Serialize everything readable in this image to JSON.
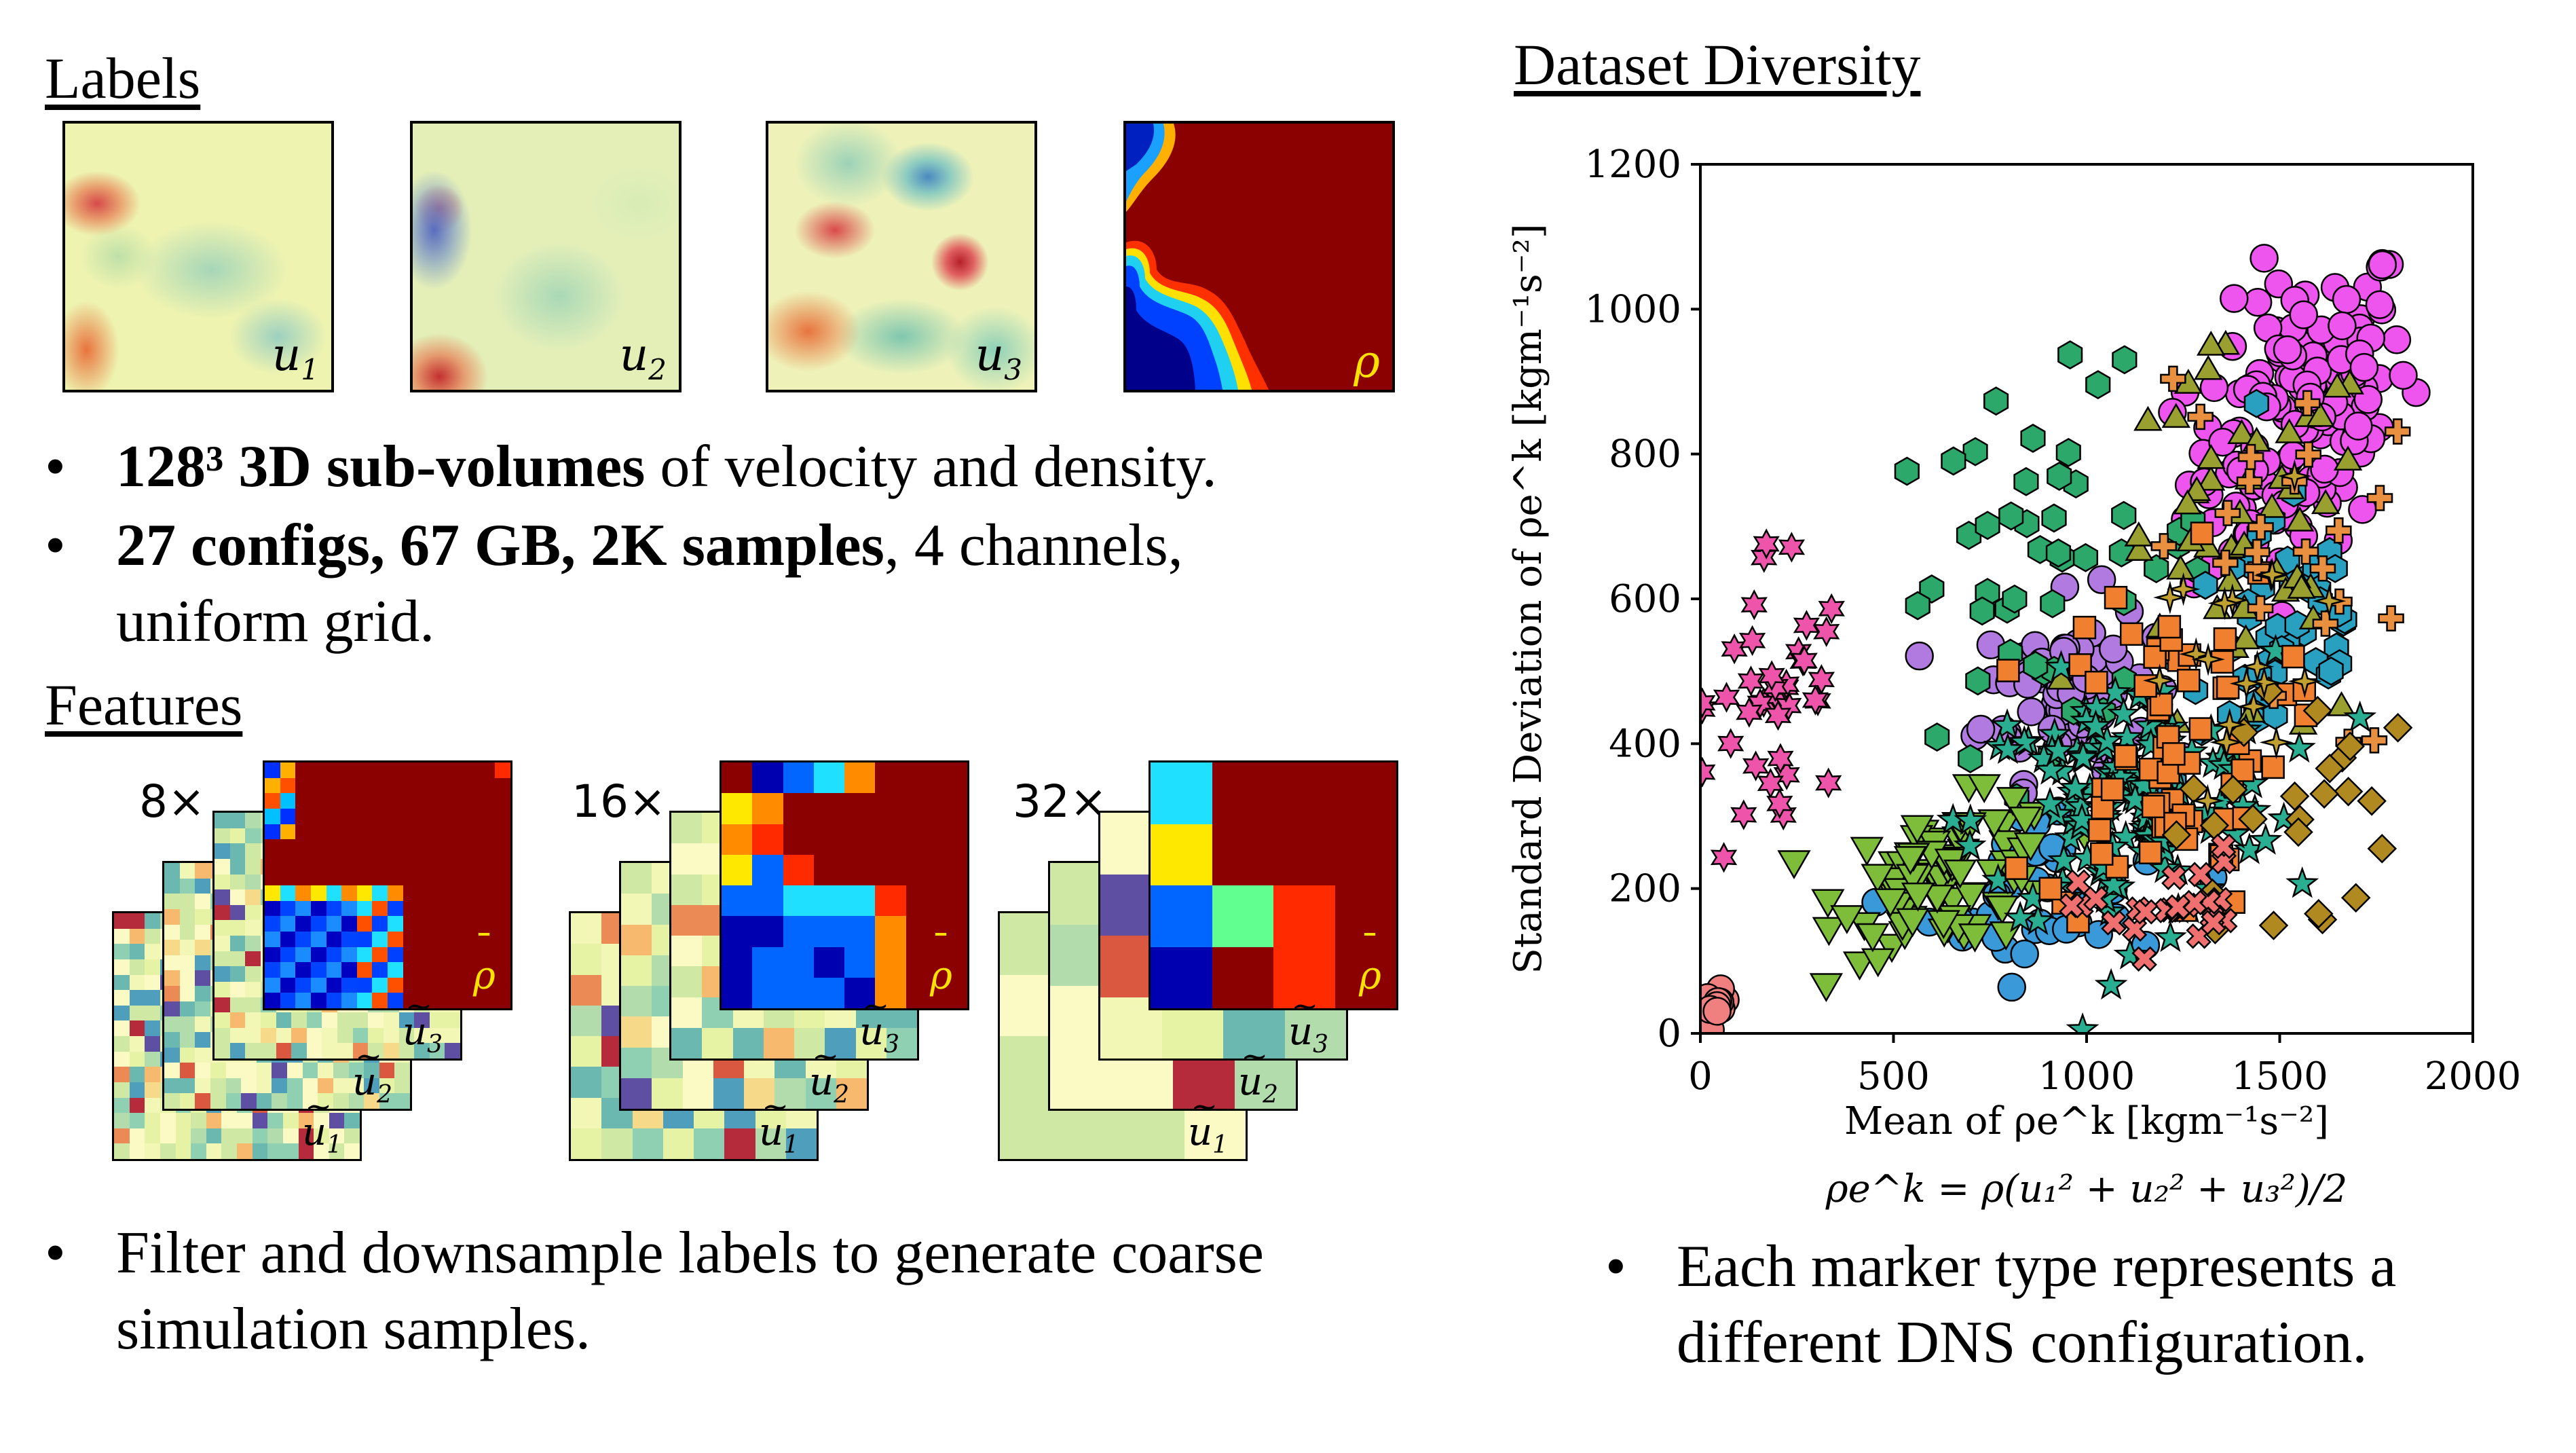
{
  "labels_heading": "Labels",
  "features_heading": "Features",
  "diversity_heading": "Dataset Diversity",
  "panels": [
    {
      "var": "u",
      "sub": "1"
    },
    {
      "var": "u",
      "sub": "2"
    },
    {
      "var": "u",
      "sub": "3"
    },
    {
      "var": "ρ",
      "sub": ""
    }
  ],
  "bullets": {
    "b1_bold": "128³ 3D sub-volumes",
    "b1_rest": " of velocity and density.",
    "b2_bold": "27 configs, 67 GB, 2K samples",
    "b2_rest": ", 4 channels,",
    "b2_line2": "uniform grid.",
    "b3_line1": "Filter and downsample labels to generate coarse",
    "b3_line2": "simulation samples.",
    "b4_line1": "Each marker type represents a",
    "b4_line2": "different DNS configuration."
  },
  "features": {
    "factors": [
      "8×",
      "16×",
      "32×"
    ],
    "stack_labels": {
      "l1": "u",
      "l2": "u",
      "l3": "u",
      "rho": "ρ"
    }
  },
  "chart_data": {
    "type": "scatter",
    "xlabel": "Mean of ρe^k [kgm⁻¹s⁻²]",
    "ylabel": "Standard Deviation of ρe^k [kgm⁻¹s⁻²]",
    "formula": "ρe^k = ρ(u₁² + u₂² + u₃²)/2",
    "xlim": [
      0,
      2000
    ],
    "ylim": [
      0,
      1200
    ],
    "xticks": [
      0,
      500,
      1000,
      1500,
      2000
    ],
    "yticks": [
      0,
      200,
      400,
      600,
      800,
      1000,
      1200
    ],
    "legend": "none",
    "series": [
      {
        "marker": "circle",
        "color": "#ee55ee",
        "center": [
          1550,
          850
        ],
        "spread": [
          260,
          180
        ],
        "n": 150
      },
      {
        "marker": "circle",
        "color": "#b07ae0",
        "center": [
          950,
          480
        ],
        "spread": [
          200,
          110
        ],
        "n": 70
      },
      {
        "marker": "circle",
        "color": "#3a9ad9",
        "center": [
          900,
          200
        ],
        "spread": [
          280,
          110
        ],
        "n": 40
      },
      {
        "marker": "circle",
        "color": "#f08080",
        "center": [
          40,
          35
        ],
        "spread": [
          25,
          20
        ],
        "n": 10
      },
      {
        "marker": "hexagon",
        "color": "#2ca86a",
        "center": [
          900,
          650
        ],
        "spread": [
          380,
          220
        ],
        "n": 50
      },
      {
        "marker": "hexagon",
        "color": "#2aa0c0",
        "center": [
          1500,
          550
        ],
        "spread": [
          250,
          180
        ],
        "n": 50
      },
      {
        "marker": "triangle",
        "color": "#9aa030",
        "center": [
          1400,
          650
        ],
        "spread": [
          320,
          260
        ],
        "n": 50
      },
      {
        "marker": "triangle-down",
        "color": "#7dbd3a",
        "center": [
          650,
          220
        ],
        "spread": [
          260,
          90
        ],
        "n": 90
      },
      {
        "marker": "star",
        "color": "#2aae92",
        "center": [
          1100,
          320
        ],
        "spread": [
          350,
          160
        ],
        "n": 150
      },
      {
        "marker": "star6",
        "color": "#ee55aa",
        "center": [
          180,
          450
        ],
        "spread": [
          180,
          220
        ],
        "n": 40
      },
      {
        "marker": "square",
        "color": "#f08030",
        "center": [
          1200,
          400
        ],
        "spread": [
          280,
          220
        ],
        "n": 70
      },
      {
        "marker": "plus",
        "color": "#e89040",
        "center": [
          1500,
          650
        ],
        "spread": [
          300,
          260
        ],
        "n": 25
      },
      {
        "marker": "diamond",
        "color": "#b08a20",
        "center": [
          1500,
          300
        ],
        "spread": [
          250,
          180
        ],
        "n": 25
      },
      {
        "marker": "x",
        "color": "#f07070",
        "center": [
          1200,
          180
        ],
        "spread": [
          200,
          60
        ],
        "n": 25
      },
      {
        "marker": "star4",
        "color": "#c0a030",
        "center": [
          1400,
          500
        ],
        "spread": [
          300,
          220
        ],
        "n": 20
      }
    ]
  }
}
